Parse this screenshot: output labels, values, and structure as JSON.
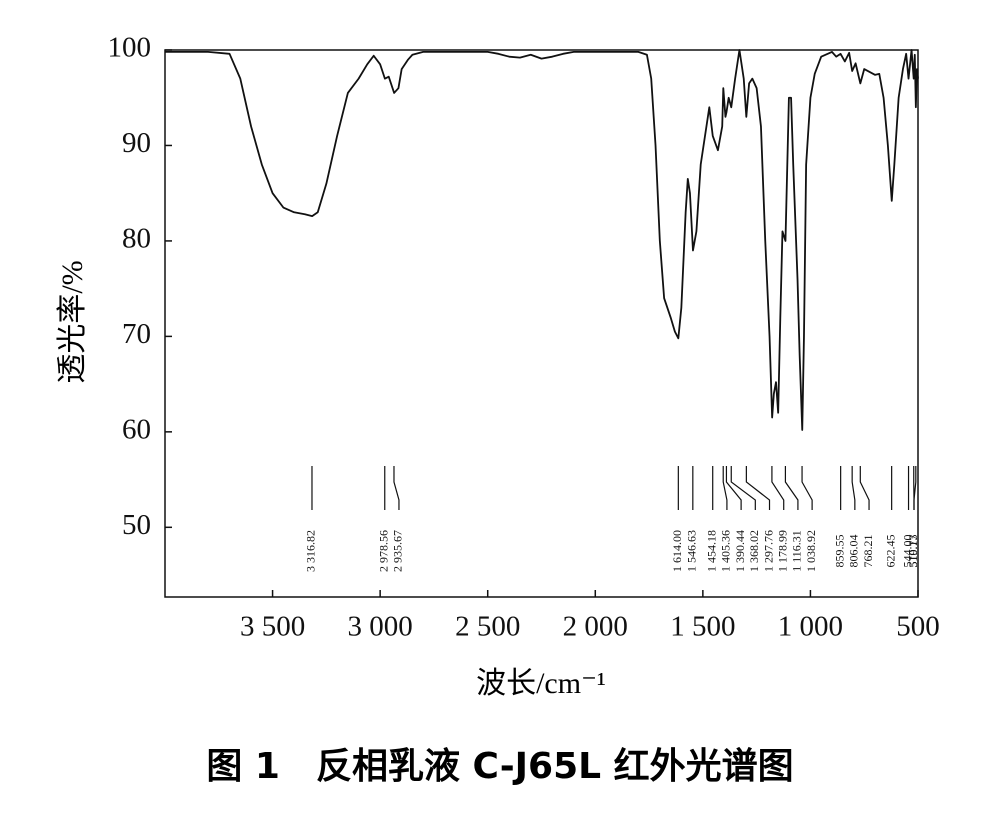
{
  "chart_data": {
    "type": "line",
    "caption": "图 1　反相乳液 C-J65L 红外光谱图",
    "xlabel": "波长/cm⁻¹",
    "ylabel": "透光率/%",
    "xlim": [
      4000,
      500
    ],
    "ylim": [
      42.7,
      100
    ],
    "xticks": [
      {
        "value": 3500,
        "label": "3 500"
      },
      {
        "value": 3000,
        "label": "3 000"
      },
      {
        "value": 2500,
        "label": "2 500"
      },
      {
        "value": 2000,
        "label": "2 000"
      },
      {
        "value": 1500,
        "label": "1 500"
      },
      {
        "value": 1000,
        "label": "1 000"
      },
      500
    ],
    "yticks": [
      50,
      60,
      70,
      80,
      90,
      100
    ],
    "series": [
      {
        "color": "#111111",
        "x": [
          4000,
          3800,
          3700,
          3650,
          3600,
          3550,
          3500,
          3450,
          3400,
          3350,
          3316,
          3290,
          3250,
          3200,
          3150,
          3100,
          3060,
          3030,
          3000,
          2978,
          2960,
          2935,
          2915,
          2900,
          2870,
          2850,
          2800,
          2500,
          2450,
          2400,
          2350,
          2300,
          2250,
          2200,
          2150,
          2100,
          1800,
          1760,
          1740,
          1720,
          1700,
          1680,
          1650,
          1630,
          1614,
          1600,
          1580,
          1570,
          1560,
          1546,
          1530,
          1510,
          1490,
          1470,
          1454,
          1430,
          1410,
          1405,
          1395,
          1390,
          1380,
          1368,
          1350,
          1330,
          1310,
          1298,
          1285,
          1270,
          1250,
          1230,
          1210,
          1190,
          1178,
          1170,
          1160,
          1150,
          1140,
          1130,
          1116,
          1100,
          1090,
          1080,
          1060,
          1050,
          1038,
          1030,
          1020,
          1000,
          980,
          950,
          900,
          880,
          860,
          840,
          820,
          806,
          790,
          768,
          750,
          700,
          680,
          660,
          640,
          622,
          610,
          590,
          570,
          555,
          544,
          530,
          520,
          515,
          510,
          505,
          500
        ],
        "values": [
          99.8,
          99.8,
          99.6,
          97,
          92,
          88,
          85,
          83.5,
          83,
          82.8,
          82.6,
          83,
          86,
          91,
          95.5,
          97,
          98.5,
          99.4,
          98.5,
          97,
          97.2,
          95.5,
          96,
          98,
          99,
          99.5,
          99.8,
          99.8,
          99.6,
          99.3,
          99.2,
          99.5,
          99.1,
          99.3,
          99.6,
          99.8,
          99.8,
          99.5,
          97,
          90,
          80,
          74,
          72,
          70.5,
          69.8,
          73,
          83,
          86.5,
          85,
          79,
          81,
          88,
          91,
          94,
          91,
          89.5,
          92,
          96,
          93,
          93.5,
          95,
          94,
          97,
          100,
          97,
          93,
          96.5,
          97,
          96,
          92,
          80,
          70,
          61.5,
          64,
          65.2,
          62,
          72,
          81,
          80,
          95,
          95,
          88,
          76,
          68,
          60.2,
          70,
          88,
          95,
          97.5,
          99.3,
          99.8,
          99.3,
          99.6,
          98.8,
          99.7,
          97.8,
          98.6,
          96.5,
          98,
          97.4,
          97.5,
          95,
          90,
          84.2,
          88,
          95,
          98,
          99.6,
          97,
          100,
          97,
          99.5,
          94,
          98,
          97
        ]
      }
    ],
    "peaks": [
      {
        "x": 3316.82,
        "label": "3 316.82"
      },
      {
        "x": 2978.56,
        "label": "2 978.56"
      },
      {
        "x": 2935.67,
        "label": "2 935.67"
      },
      {
        "x": 1614.0,
        "label": "1 614.00"
      },
      {
        "x": 1546.63,
        "label": "1 546.63"
      },
      {
        "x": 1454.18,
        "label": "1 454.18"
      },
      {
        "x": 1405.36,
        "label": "1 405.36"
      },
      {
        "x": 1390.44,
        "label": "1 390.44"
      },
      {
        "x": 1368.02,
        "label": "1 368.02"
      },
      {
        "x": 1297.76,
        "label": "1 297.76"
      },
      {
        "x": 1178.99,
        "label": "1 178.99"
      },
      {
        "x": 1116.31,
        "label": "1 116.31"
      },
      {
        "x": 1038.92,
        "label": "1 038.92"
      },
      {
        "x": 859.55,
        "label": "859.55"
      },
      {
        "x": 806.04,
        "label": "806.04"
      },
      {
        "x": 768.21,
        "label": "768.21"
      },
      {
        "x": 622.45,
        "label": "622.45"
      },
      {
        "x": 544.0,
        "label": "544.00"
      },
      {
        "x": 519.77,
        "label": "519.77"
      },
      {
        "x": 510.13,
        "label": "510.13"
      }
    ]
  }
}
